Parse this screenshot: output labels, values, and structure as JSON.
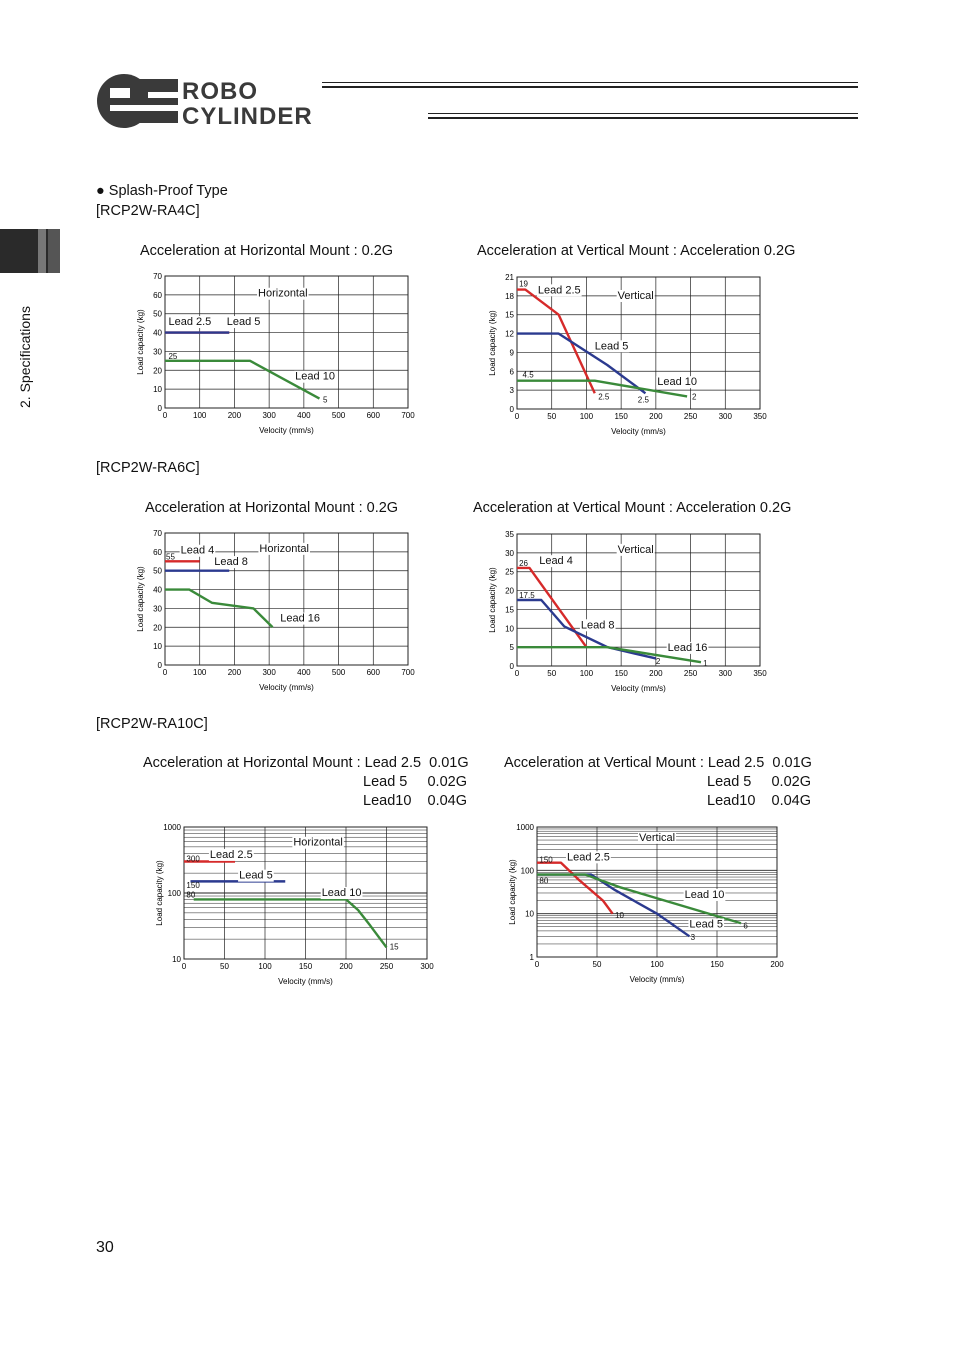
{
  "header": {
    "logo_line1": "ROBO",
    "logo_line2": "CYLINDER",
    "logo_mark": "RC"
  },
  "side_tab": {
    "label": "2. Specifications"
  },
  "section": {
    "bullet_heading": "● Splash-Proof Type"
  },
  "models": [
    {
      "name": "[RCP2W-RA4C]"
    },
    {
      "name": "[RCP2W-RA6C]"
    },
    {
      "name": "[RCP2W-RA10C]"
    }
  ],
  "chart_titles": {
    "ra4c_h": "Acceleration at Horizontal Mount : 0.2G",
    "ra4c_v": "Acceleration at Vertical Mount : Acceleration 0.2G",
    "ra6c_h": "Acceleration at Horizontal Mount : 0.2G",
    "ra6c_v": "Acceleration at Vertical Mount : Acceleration 0.2G",
    "ra10c_h": [
      "Acceleration at Horizontal Mount : Lead 2.5  0.01G",
      "Lead 5     0.02G",
      "Lead10    0.04G"
    ],
    "ra10c_v": [
      "Acceleration at Vertical Mount : Lead 2.5  0.01G",
      "Lead 5     0.02G",
      "Lead10    0.04G"
    ]
  },
  "page_number": "30",
  "colors": {
    "red": "#d62a2a",
    "blue": "#2b3a8f",
    "green": "#3a8a3a",
    "grid": "#222222"
  },
  "chart_data": [
    {
      "id": "ra4c_h",
      "type": "line",
      "xlabel": "Velocity (mm/s)",
      "ylabel": "Load capacity (kg)",
      "xlim": [
        0,
        700
      ],
      "ylim": [
        0,
        70
      ],
      "xticks": [
        0,
        100,
        200,
        300,
        400,
        500,
        600,
        700
      ],
      "yticks": [
        0,
        10,
        20,
        30,
        40,
        50,
        60,
        70
      ],
      "yscale": "linear",
      "panel_label": "Horizontal",
      "series": [
        {
          "name": "Lead 2.5",
          "color": "red",
          "x": [
            0,
            185
          ],
          "y": [
            40,
            40
          ]
        },
        {
          "name": "Lead 5",
          "color": "blue",
          "x": [
            0,
            185
          ],
          "y": [
            40,
            40
          ]
        },
        {
          "name": "Lead 10",
          "color": "green",
          "x": [
            0,
            245,
            445
          ],
          "y": [
            25,
            25,
            5
          ]
        }
      ],
      "labels": [
        {
          "text": "Lead 2.5",
          "x": 10,
          "y": 44
        },
        {
          "text": "Lead 5",
          "x": 178,
          "y": 44
        },
        {
          "text": "Lead 10",
          "x": 375,
          "y": 15
        },
        {
          "text": "25",
          "x": 10,
          "y": 26,
          "small": true
        },
        {
          "text": "5",
          "x": 455,
          "y": 3,
          "small": true
        },
        {
          "text": "Horizontal",
          "x": 268,
          "y": 59
        }
      ]
    },
    {
      "id": "ra4c_v",
      "type": "line",
      "xlabel": "Velocity (mm/s)",
      "ylabel": "Load capacity (kg)",
      "xlim": [
        0,
        350
      ],
      "ylim": [
        0,
        21
      ],
      "xticks": [
        0,
        50,
        100,
        150,
        200,
        250,
        300,
        350
      ],
      "yticks": [
        0,
        3,
        6,
        9,
        12,
        15,
        18,
        21
      ],
      "yscale": "linear",
      "panel_label": "Vertical",
      "series": [
        {
          "name": "Lead 2.5",
          "color": "red",
          "x": [
            0,
            12,
            60,
            112
          ],
          "y": [
            19,
            19,
            15,
            2.5
          ]
        },
        {
          "name": "Lead 5",
          "color": "blue",
          "x": [
            0,
            60,
            130,
            185
          ],
          "y": [
            12,
            12,
            7,
            2.5
          ]
        },
        {
          "name": "Lead 10",
          "color": "green",
          "x": [
            0,
            112,
            245
          ],
          "y": [
            4.5,
            4.5,
            2
          ]
        }
      ],
      "labels": [
        {
          "text": "Lead 2.5",
          "x": 30,
          "y": 18.4
        },
        {
          "text": "Lead 5",
          "x": 112,
          "y": 9.5
        },
        {
          "text": "Lead 10",
          "x": 202,
          "y": 3.8
        },
        {
          "text": "19",
          "x": 3,
          "y": 19.5,
          "small": true
        },
        {
          "text": "4.5",
          "x": 8,
          "y": 5.0,
          "small": true
        },
        {
          "text": "2.5",
          "x": 117,
          "y": 1.5,
          "small": true
        },
        {
          "text": "2.5",
          "x": 174,
          "y": 1.0,
          "small": true
        },
        {
          "text": "2",
          "x": 252,
          "y": 1.5,
          "small": true
        },
        {
          "text": "Vertical",
          "x": 145,
          "y": 17.5
        }
      ]
    },
    {
      "id": "ra6c_h",
      "type": "line",
      "xlabel": "Velocity (mm/s)",
      "ylabel": "Load capacity (kg)",
      "xlim": [
        0,
        700
      ],
      "ylim": [
        0,
        70
      ],
      "xticks": [
        0,
        100,
        200,
        300,
        400,
        500,
        600,
        700
      ],
      "yticks": [
        0,
        10,
        20,
        30,
        40,
        50,
        60,
        70
      ],
      "yscale": "linear",
      "panel_label": "Horizontal",
      "series": [
        {
          "name": "Lead 4",
          "color": "red",
          "x": [
            0,
            100
          ],
          "y": [
            55,
            55
          ]
        },
        {
          "name": "Lead 8",
          "color": "blue",
          "x": [
            0,
            185
          ],
          "y": [
            50,
            50
          ]
        },
        {
          "name": "Lead 16",
          "color": "green",
          "x": [
            0,
            70,
            135,
            255,
            310
          ],
          "y": [
            40,
            40,
            33,
            30,
            20
          ]
        }
      ],
      "labels": [
        {
          "text": "Lead 4",
          "x": 45,
          "y": 59
        },
        {
          "text": "Lead 8",
          "x": 142,
          "y": 53
        },
        {
          "text": "Lead 16",
          "x": 332,
          "y": 23
        },
        {
          "text": "55",
          "x": 3,
          "y": 56,
          "small": true
        },
        {
          "text": "Horizontal",
          "x": 272,
          "y": 60
        }
      ]
    },
    {
      "id": "ra6c_v",
      "type": "line",
      "xlabel": "Velocity (mm/s)",
      "ylabel": "Load capacity (kg)",
      "xlim": [
        0,
        350
      ],
      "ylim": [
        0,
        35
      ],
      "xticks": [
        0,
        50,
        100,
        150,
        200,
        250,
        300,
        350
      ],
      "yticks": [
        0,
        5,
        10,
        15,
        20,
        25,
        30,
        35
      ],
      "yscale": "linear",
      "panel_label": "Vertical",
      "series": [
        {
          "name": "Lead 4",
          "color": "red",
          "x": [
            0,
            18,
            100
          ],
          "y": [
            26,
            26,
            5
          ]
        },
        {
          "name": "Lead 8",
          "color": "blue",
          "x": [
            0,
            35,
            68,
            130,
            200
          ],
          "y": [
            17.5,
            17.5,
            10.5,
            5,
            2
          ]
        },
        {
          "name": "Lead 16",
          "color": "green",
          "x": [
            0,
            130,
            265
          ],
          "y": [
            5,
            5,
            1
          ]
        }
      ],
      "labels": [
        {
          "text": "Lead 4",
          "x": 32,
          "y": 27
        },
        {
          "text": "Lead 8",
          "x": 92,
          "y": 10
        },
        {
          "text": "Lead 16",
          "x": 217,
          "y": 4
        },
        {
          "text": "26",
          "x": 3,
          "y": 26.5,
          "small": true
        },
        {
          "text": "17.5",
          "x": 3,
          "y": 18,
          "small": true
        },
        {
          "text": "2",
          "x": 200,
          "y": 0.5,
          "small": true
        },
        {
          "text": "1",
          "x": 268,
          "y": 0,
          "small": true
        },
        {
          "text": "Vertical",
          "x": 145,
          "y": 30
        }
      ]
    },
    {
      "id": "ra10c_h",
      "type": "line",
      "xlabel": "Velocity (mm/s)",
      "ylabel": "Load capacity (kg)",
      "xlim": [
        0,
        300
      ],
      "ylim": [
        10,
        1000
      ],
      "xticks": [
        0,
        50,
        100,
        150,
        200,
        250,
        300
      ],
      "yticks": [
        10,
        100,
        1000
      ],
      "yscale": "log",
      "panel_label": "Horizontal",
      "series": [
        {
          "name": "Lead 2.5",
          "color": "red",
          "x": [
            0,
            63
          ],
          "y": [
            300,
            300
          ]
        },
        {
          "name": "Lead 5",
          "color": "blue",
          "x": [
            8,
            125
          ],
          "y": [
            150,
            150
          ]
        },
        {
          "name": "Lead 10",
          "color": "green",
          "x": [
            12,
            200,
            215,
            230,
            250
          ],
          "y": [
            80,
            80,
            55,
            32,
            15
          ]
        }
      ],
      "labels": [
        {
          "text": "Lead 2.5",
          "x": 32,
          "y": 340
        },
        {
          "text": "Lead 5",
          "x": 68,
          "y": 165
        },
        {
          "text": "Lead 10",
          "x": 170,
          "y": 90
        },
        {
          "text": "300",
          "x": 3,
          "y": 300,
          "small": true
        },
        {
          "text": "150",
          "x": 3,
          "y": 120,
          "small": true
        },
        {
          "text": "80",
          "x": 3,
          "y": 85,
          "small": true
        },
        {
          "text": "15",
          "x": 254,
          "y": 14,
          "small": true
        },
        {
          "text": "Horizontal",
          "x": 135,
          "y": 520
        }
      ]
    },
    {
      "id": "ra10c_v",
      "type": "line",
      "xlabel": "Velocity (mm/s)",
      "ylabel": "Load capacity (kg)",
      "xlim": [
        0,
        200
      ],
      "ylim": [
        1,
        1000
      ],
      "xticks": [
        0,
        50,
        100,
        150,
        200
      ],
      "yticks": [
        1,
        10,
        100,
        1000
      ],
      "yscale": "log",
      "panel_label": "Vertical",
      "series": [
        {
          "name": "Lead 2.5",
          "color": "red",
          "x": [
            0,
            20,
            35,
            55,
            63
          ],
          "y": [
            150,
            150,
            60,
            20,
            10
          ]
        },
        {
          "name": "Lead 5",
          "color": "blue",
          "x": [
            0,
            45,
            65,
            100,
            127
          ],
          "y": [
            80,
            80,
            35,
            10,
            3
          ]
        },
        {
          "name": "Lead 10",
          "color": "green",
          "x": [
            0,
            40,
            70,
            170
          ],
          "y": [
            80,
            80,
            40,
            6
          ]
        }
      ],
      "labels": [
        {
          "text": "Lead 2.5",
          "x": 25,
          "y": 170
        },
        {
          "text": "Lead 10",
          "x": 123,
          "y": 23
        },
        {
          "text": "Lead 5",
          "x": 127,
          "y": 4.8
        },
        {
          "text": "150",
          "x": 2,
          "y": 150,
          "small": true
        },
        {
          "text": "80",
          "x": 2,
          "y": 50,
          "small": true
        },
        {
          "text": "10",
          "x": 65,
          "y": 8,
          "small": true
        },
        {
          "text": "3",
          "x": 128,
          "y": 2.5,
          "small": true
        },
        {
          "text": "6",
          "x": 172,
          "y": 4.5,
          "small": true
        },
        {
          "text": "Vertical",
          "x": 85,
          "y": 480
        }
      ]
    }
  ]
}
